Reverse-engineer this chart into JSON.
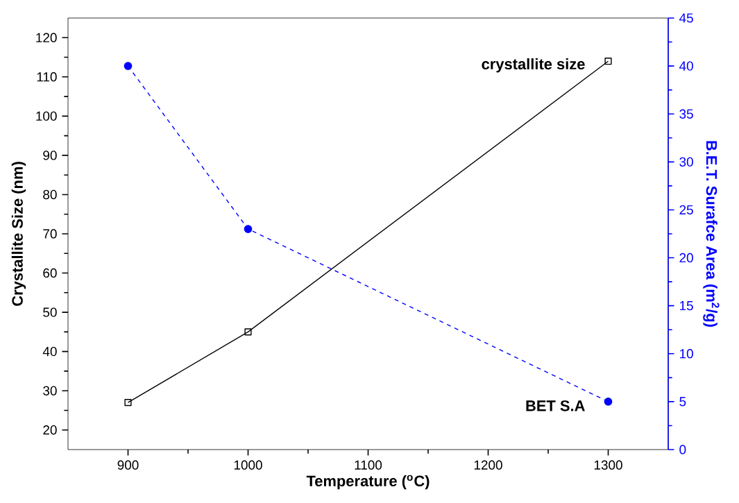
{
  "chart_data": {
    "type": "line",
    "xlabel": "Temperature ($^{o}$C)",
    "ylabel": "Crystallite Size (nm)",
    "y2label": "B.E.T. Surafce Area (m$^{2}$/g)",
    "x": [
      900,
      1000,
      1300
    ],
    "xlim": [
      850,
      1350
    ],
    "xticks": [
      900,
      1000,
      1100,
      1200,
      1300
    ],
    "ylim": [
      15,
      125
    ],
    "yticks": [
      20,
      30,
      40,
      50,
      60,
      70,
      80,
      90,
      100,
      110,
      120
    ],
    "y2lim": [
      0,
      45
    ],
    "y2ticks": [
      0,
      5,
      10,
      15,
      20,
      25,
      30,
      35,
      40,
      45
    ],
    "grid": false,
    "legend": false,
    "series": [
      {
        "name": "crystallite size",
        "color": "#000000",
        "values": [
          27,
          45,
          114
        ],
        "marker": "square",
        "line_style": "solid"
      },
      {
        "name": "BET S.A",
        "color": "#0000ff",
        "values": [
          40,
          23,
          5
        ],
        "axis": "y2",
        "marker": "circle",
        "line_style": "dashed"
      }
    ]
  }
}
